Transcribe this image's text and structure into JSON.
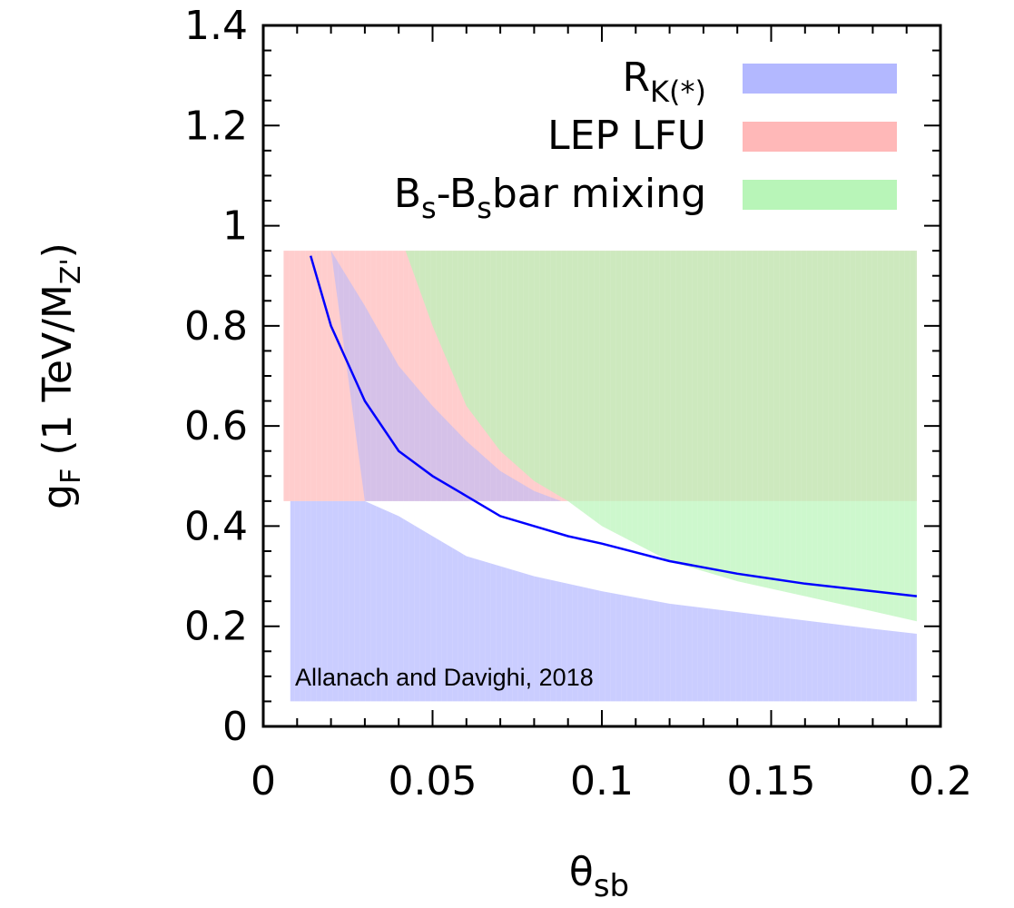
{
  "chart_data": {
    "type": "area",
    "xlabel": "θ",
    "xlabel_sub": "sb",
    "ylabel_main": "g",
    "ylabel_main_sub": "F",
    "ylabel_rest": " (1 TeV/M",
    "ylabel_rest_sub": "Z'",
    "ylabel_end": ")",
    "xlim": [
      0,
      0.2
    ],
    "ylim": [
      0,
      1.4
    ],
    "x_ticks": [
      "0",
      "0.05",
      "0.1",
      "0.15",
      "0.2"
    ],
    "y_ticks": [
      "0",
      "0.2",
      "0.4",
      "0.6",
      "0.8",
      "1",
      "1.2",
      "1.4"
    ],
    "annotation": "Allanach and Davighi, 2018",
    "legend_position": "top-right",
    "legend": [
      {
        "key": "rk",
        "main": "R",
        "sub": "K(*)",
        "rest": "",
        "rest_sub": "",
        "tail": "",
        "color": "#b3b8ff"
      },
      {
        "key": "lep",
        "main": "LEP LFU",
        "sub": "",
        "rest": "",
        "rest_sub": "",
        "tail": "",
        "color": "#ffb8b8"
      },
      {
        "key": "bs",
        "main": "B",
        "sub": "s",
        "rest": "-B",
        "rest_sub": "s",
        "tail": "bar mixing",
        "color": "#b8f5b8"
      }
    ],
    "bands": {
      "rk": {
        "color": "#b3b8ff",
        "x": [
          0.008,
          0.012,
          0.02,
          0.03,
          0.04,
          0.05,
          0.06,
          0.08,
          0.1,
          0.12,
          0.15,
          0.18,
          0.193
        ],
        "lower": [
          0.05,
          0.05,
          0.05,
          0.05,
          0.05,
          0.05,
          0.05,
          0.05,
          0.05,
          0.05,
          0.05,
          0.05,
          0.05
        ],
        "upper": [
          0.45,
          0.45,
          0.45,
          0.45,
          0.42,
          0.38,
          0.34,
          0.3,
          0.27,
          0.245,
          0.22,
          0.195,
          0.185
        ]
      },
      "lep": {
        "color": "#ffb8b8",
        "x": [
          0.006,
          0.193
        ],
        "lower": [
          0.45,
          0.45
        ],
        "upper": [
          0.95,
          0.95
        ]
      },
      "bs": {
        "color": "#b8f5b8",
        "x": [
          0.042,
          0.05,
          0.06,
          0.07,
          0.08,
          0.09,
          0.1,
          0.12,
          0.14,
          0.16,
          0.18,
          0.193
        ],
        "lower": [
          0.95,
          0.8,
          0.64,
          0.55,
          0.49,
          0.45,
          0.4,
          0.33,
          0.29,
          0.26,
          0.23,
          0.21
        ],
        "upper": [
          0.95,
          0.95,
          0.95,
          0.95,
          0.95,
          0.95,
          0.95,
          0.95,
          0.95,
          0.95,
          0.95,
          0.95
        ]
      }
    },
    "curve": {
      "color": "#0000ff",
      "x": [
        0.014,
        0.02,
        0.03,
        0.04,
        0.05,
        0.06,
        0.07,
        0.08,
        0.09,
        0.1,
        0.12,
        0.14,
        0.16,
        0.18,
        0.193
      ],
      "y": [
        0.94,
        0.8,
        0.65,
        0.55,
        0.5,
        0.46,
        0.42,
        0.4,
        0.38,
        0.365,
        0.33,
        0.305,
        0.285,
        0.27,
        0.26
      ]
    }
  }
}
